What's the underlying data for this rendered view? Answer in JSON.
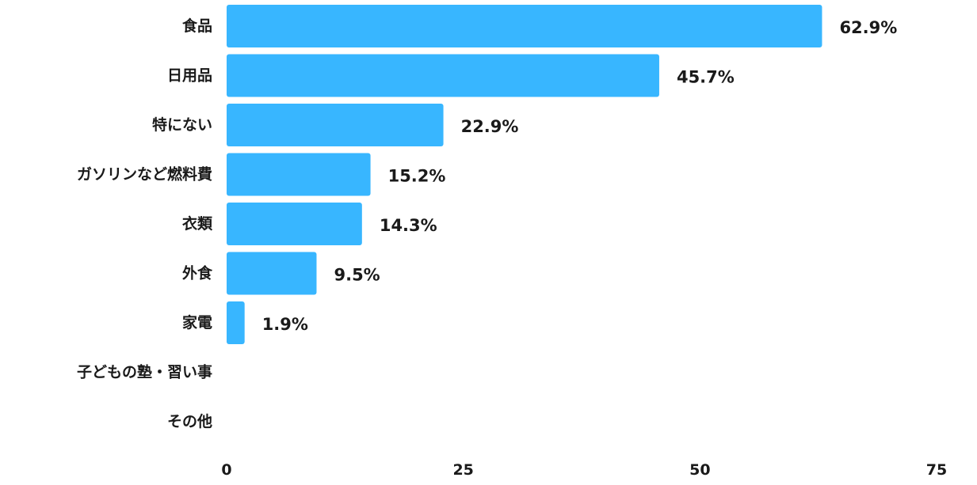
{
  "chart_data": {
    "type": "bar",
    "orientation": "horizontal",
    "categories": [
      "食品",
      "日用品",
      "特にない",
      "ガソリンなど燃料費",
      "衣類",
      "外食",
      "家電",
      "子どもの塾・習い事",
      "その他"
    ],
    "values": [
      62.9,
      45.7,
      22.9,
      15.2,
      14.3,
      9.5,
      1.9,
      0,
      0
    ],
    "value_labels": [
      "62.9%",
      "45.7%",
      "22.9%",
      "15.2%",
      "14.3%",
      "9.5%",
      "1.9%",
      "",
      ""
    ],
    "xlim": [
      0,
      75
    ],
    "xticks": [
      0,
      25,
      50,
      75
    ],
    "xtick_labels": [
      "0",
      "25",
      "50",
      "75"
    ],
    "bar_color": "#38b6ff",
    "grid": false,
    "title": "",
    "xlabel": "",
    "ylabel": ""
  }
}
